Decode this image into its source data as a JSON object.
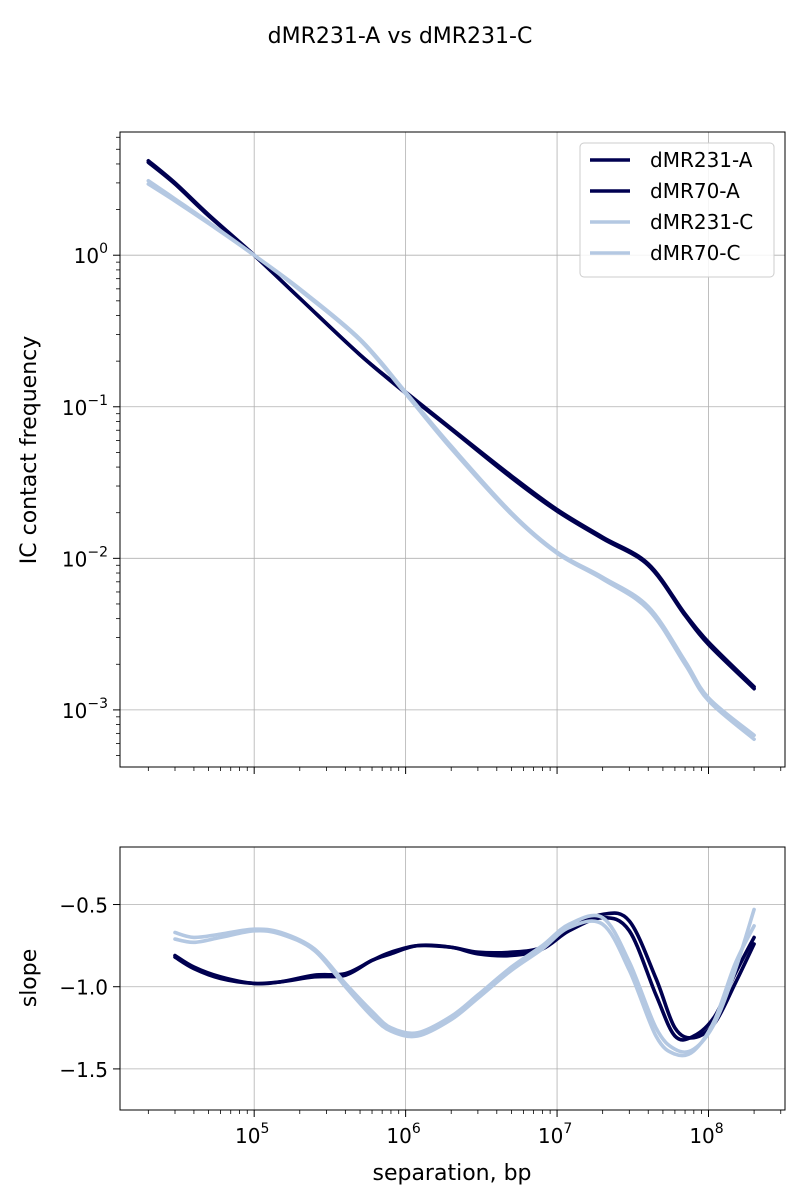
{
  "figure": {
    "title": "dMR231-A vs dMR231-C"
  },
  "chart_data": [
    {
      "type": "line",
      "title": "",
      "xlabel": "",
      "ylabel": "IC contact frequency",
      "xscale": "log",
      "yscale": "log",
      "xlim": [
        13000,
        320000000
      ],
      "ylim": [
        0.00042,
        6.5
      ],
      "grid": true,
      "legend": "top-right",
      "x_ticks": [
        {
          "value": 100000,
          "base": "10",
          "exp": "5"
        },
        {
          "value": 1000000,
          "base": "10",
          "exp": "6"
        },
        {
          "value": 10000000,
          "base": "10",
          "exp": "7"
        },
        {
          "value": 100000000,
          "base": "10",
          "exp": "8"
        }
      ],
      "x_tick_labels_visible": false,
      "y_ticks": [
        {
          "value": 1,
          "base": "10",
          "exp": "0"
        },
        {
          "value": 0.1,
          "base": "10",
          "exp": "−1"
        },
        {
          "value": 0.01,
          "base": "10",
          "exp": "−2"
        },
        {
          "value": 0.001,
          "base": "10",
          "exp": "−3"
        }
      ],
      "series": [
        {
          "name": "dMR231-A",
          "color": "#000050",
          "x": [
            20000,
            30000,
            50000,
            100000,
            200000,
            500000,
            1000000,
            2000000,
            5000000,
            10000000,
            20000000,
            40000000,
            70000000,
            100000000,
            200000000
          ],
          "y": [
            4.2,
            3.0,
            1.85,
            1.0,
            0.52,
            0.22,
            0.125,
            0.072,
            0.035,
            0.021,
            0.0138,
            0.0092,
            0.0043,
            0.0028,
            0.00142
          ]
        },
        {
          "name": "dMR70-A",
          "color": "#000050",
          "x": [
            20000,
            30000,
            50000,
            100000,
            200000,
            500000,
            1000000,
            2000000,
            5000000,
            10000000,
            20000000,
            40000000,
            70000000,
            100000000,
            200000000
          ],
          "y": [
            4.1,
            2.95,
            1.82,
            1.0,
            0.52,
            0.22,
            0.123,
            0.071,
            0.034,
            0.0205,
            0.0135,
            0.009,
            0.0042,
            0.0027,
            0.00138
          ]
        },
        {
          "name": "dMR231-C",
          "color": "#b4c8e2",
          "x": [
            20000,
            30000,
            50000,
            100000,
            200000,
            500000,
            1000000,
            2000000,
            5000000,
            10000000,
            20000000,
            40000000,
            70000000,
            100000000,
            200000000
          ],
          "y": [
            3.1,
            2.35,
            1.65,
            1.0,
            0.6,
            0.28,
            0.125,
            0.055,
            0.02,
            0.011,
            0.0075,
            0.0048,
            0.0021,
            0.0012,
            0.00068
          ]
        },
        {
          "name": "dMR70-C",
          "color": "#b4c8e2",
          "x": [
            20000,
            30000,
            50000,
            100000,
            200000,
            500000,
            1000000,
            2000000,
            5000000,
            10000000,
            20000000,
            40000000,
            70000000,
            100000000,
            200000000
          ],
          "y": [
            2.95,
            2.28,
            1.62,
            1.0,
            0.59,
            0.275,
            0.122,
            0.053,
            0.0195,
            0.0108,
            0.0073,
            0.0046,
            0.002,
            0.00115,
            0.00064
          ]
        }
      ]
    },
    {
      "type": "line",
      "title": "",
      "xlabel": "separation, bp",
      "ylabel": "slope",
      "xscale": "log",
      "yscale": "linear",
      "xlim": [
        13000,
        320000000
      ],
      "ylim": [
        -1.75,
        -0.15
      ],
      "grid": true,
      "legend": "none",
      "x_ticks": [
        {
          "value": 100000,
          "base": "10",
          "exp": "5"
        },
        {
          "value": 1000000,
          "base": "10",
          "exp": "6"
        },
        {
          "value": 10000000,
          "base": "10",
          "exp": "7"
        },
        {
          "value": 100000000,
          "base": "10",
          "exp": "8"
        }
      ],
      "y_ticks": [
        {
          "value": -0.5,
          "label": "−0.5"
        },
        {
          "value": -1.0,
          "label": "−1.0"
        },
        {
          "value": -1.5,
          "label": "−1.5"
        }
      ],
      "series": [
        {
          "name": "dMR231-A",
          "color": "#000050",
          "x": [
            30000,
            40000,
            60000,
            100000,
            150000,
            250000,
            400000,
            600000,
            800000,
            1200000,
            2000000,
            3000000,
            5000000,
            8000000,
            12000000,
            20000000,
            30000000,
            45000000,
            60000000,
            80000000,
            110000000,
            150000000,
            200000000
          ],
          "y": [
            -0.81,
            -0.88,
            -0.94,
            -0.98,
            -0.97,
            -0.93,
            -0.92,
            -0.84,
            -0.79,
            -0.75,
            -0.76,
            -0.79,
            -0.79,
            -0.76,
            -0.65,
            -0.56,
            -0.6,
            -0.95,
            -1.25,
            -1.31,
            -1.22,
            -0.98,
            -0.74
          ]
        },
        {
          "name": "dMR70-A",
          "color": "#000050",
          "x": [
            30000,
            40000,
            60000,
            100000,
            150000,
            250000,
            400000,
            600000,
            800000,
            1200000,
            2000000,
            3000000,
            5000000,
            8000000,
            12000000,
            20000000,
            30000000,
            45000000,
            60000000,
            80000000,
            110000000,
            150000000,
            200000000
          ],
          "y": [
            -0.82,
            -0.89,
            -0.95,
            -0.98,
            -0.97,
            -0.94,
            -0.93,
            -0.84,
            -0.8,
            -0.75,
            -0.76,
            -0.8,
            -0.81,
            -0.77,
            -0.66,
            -0.58,
            -0.66,
            -1.05,
            -1.3,
            -1.3,
            -1.18,
            -0.92,
            -0.7
          ]
        },
        {
          "name": "dMR231-C",
          "color": "#b4c8e2",
          "x": [
            30000,
            40000,
            60000,
            100000,
            150000,
            250000,
            400000,
            600000,
            800000,
            1200000,
            2000000,
            3000000,
            5000000,
            8000000,
            12000000,
            20000000,
            30000000,
            45000000,
            60000000,
            80000000,
            110000000,
            150000000,
            200000000
          ],
          "y": [
            -0.67,
            -0.7,
            -0.68,
            -0.65,
            -0.67,
            -0.77,
            -0.98,
            -1.15,
            -1.25,
            -1.28,
            -1.18,
            -1.05,
            -0.88,
            -0.75,
            -0.62,
            -0.58,
            -0.85,
            -1.25,
            -1.38,
            -1.38,
            -1.22,
            -0.9,
            -0.53
          ]
        },
        {
          "name": "dMR70-C",
          "color": "#b4c8e2",
          "x": [
            30000,
            40000,
            60000,
            100000,
            150000,
            250000,
            400000,
            600000,
            800000,
            1200000,
            2000000,
            3000000,
            5000000,
            8000000,
            12000000,
            20000000,
            30000000,
            45000000,
            60000000,
            80000000,
            110000000,
            150000000,
            200000000
          ],
          "y": [
            -0.71,
            -0.73,
            -0.7,
            -0.66,
            -0.68,
            -0.78,
            -1.0,
            -1.18,
            -1.27,
            -1.3,
            -1.2,
            -1.07,
            -0.9,
            -0.77,
            -0.64,
            -0.62,
            -0.9,
            -1.3,
            -1.41,
            -1.39,
            -1.2,
            -0.86,
            -0.63
          ]
        }
      ]
    }
  ]
}
